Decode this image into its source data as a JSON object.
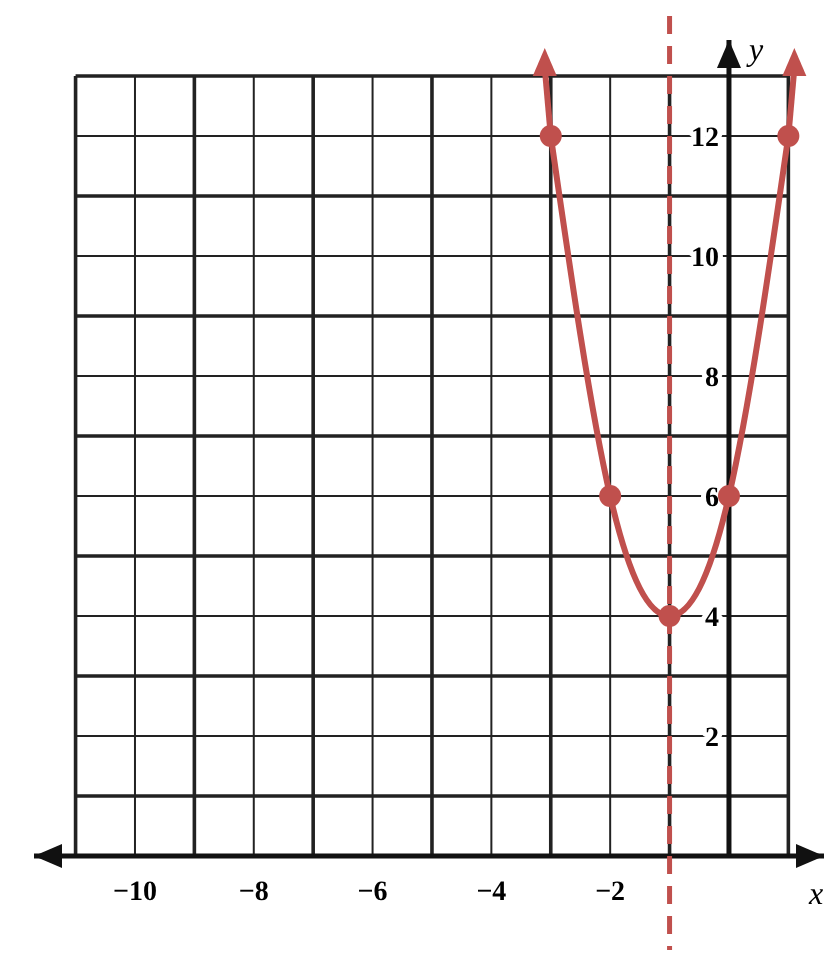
{
  "chart_data": {
    "type": "line",
    "xlabel": "x",
    "ylabel": "y",
    "x": [
      -3,
      -2,
      -1,
      0,
      1
    ],
    "series": [
      {
        "color": "#c0504d",
        "values": [
          12,
          6,
          4,
          6,
          12
        ]
      }
    ],
    "marker": "circle",
    "line_style": "solid",
    "grid": true,
    "xlim": [
      -11.7,
      1.6
    ],
    "ylim": [
      0,
      13.6
    ],
    "xticks": [
      {
        "value": -11,
        "label": null
      },
      -10,
      {
        "value": -9,
        "label": null
      },
      -8,
      {
        "value": -7,
        "label": null
      },
      -6,
      {
        "value": -5,
        "label": null
      },
      -4,
      {
        "value": -3,
        "label": null
      },
      -2,
      {
        "value": -1,
        "label": null
      },
      {
        "value": 0,
        "label": null
      },
      {
        "value": 1,
        "label": null
      }
    ],
    "yticks": [
      {
        "value": 0,
        "label": null
      },
      {
        "value": 1,
        "label": null
      },
      2,
      {
        "value": 3,
        "label": null
      },
      4,
      {
        "value": 5,
        "label": null
      },
      6,
      {
        "value": 7,
        "label": null
      },
      8,
      {
        "value": 9,
        "label": null
      },
      10,
      {
        "value": 11,
        "label": null
      },
      12,
      {
        "value": 13,
        "label": null
      }
    ],
    "ref_lines": [
      {
        "axis": "x",
        "value": -1,
        "color": "#c0504d",
        "line_style": "dashed"
      }
    ]
  }
}
